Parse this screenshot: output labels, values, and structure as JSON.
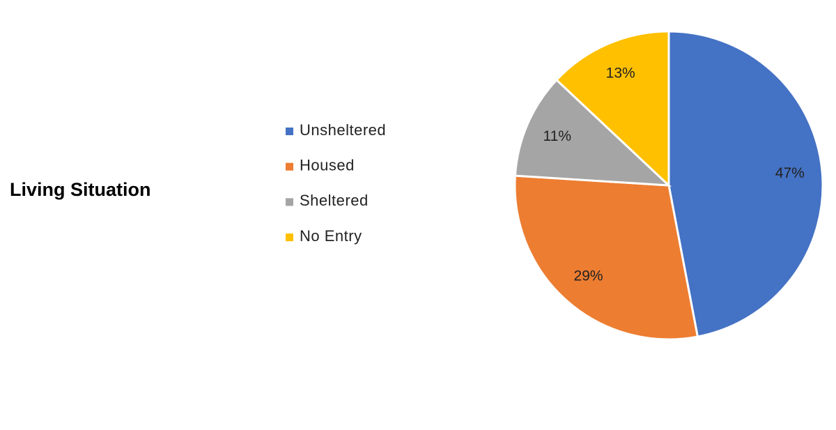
{
  "chart_data": {
    "type": "pie",
    "title": "Living Situation",
    "categories": [
      "Unsheltered",
      "Housed",
      "Sheltered",
      "No Entry"
    ],
    "values": [
      47,
      29,
      11,
      13
    ],
    "value_labels": [
      "47%",
      "29%",
      "11%",
      "13%"
    ],
    "colors": [
      "#4472c4",
      "#ed7d31",
      "#a5a5a5",
      "#ffc000"
    ],
    "legend": "left"
  }
}
